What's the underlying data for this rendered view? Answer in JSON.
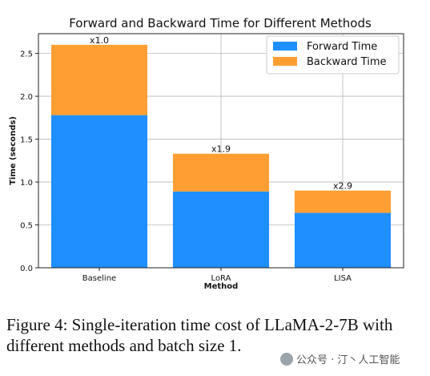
{
  "chart_data": {
    "type": "bar",
    "stacked": true,
    "title": "Forward and Backward Time for Different Methods",
    "xlabel": "Method",
    "ylabel": "Time (seconds)",
    "categories": [
      "Baseline",
      "LoRA",
      "LISA"
    ],
    "series": [
      {
        "name": "Forward Time",
        "values": [
          1.78,
          0.89,
          0.64
        ],
        "color": "#1f8fff"
      },
      {
        "name": "Backward Time",
        "values": [
          0.82,
          0.44,
          0.26
        ],
        "color": "#ff9f33"
      }
    ],
    "annotations": [
      "x1.0",
      "x1.9",
      "x2.9"
    ],
    "yticks": [
      "0.0",
      "0.5",
      "1.0",
      "1.5",
      "2.0",
      "2.5"
    ],
    "ylim": [
      0,
      2.73
    ],
    "grid": true,
    "legend_position": "top-right"
  },
  "caption": "Figure 4:  Single-iteration time cost of LLaMA-2-7B with different methods and batch size 1.",
  "watermark": "公众号 · 汀丶人工智能"
}
